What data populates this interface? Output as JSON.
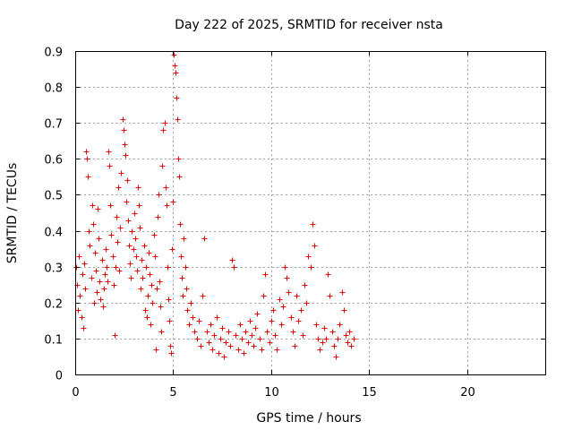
{
  "chart_data": {
    "type": "scatter",
    "title": "Day 222 of 2025, SRMTID for receiver nsta",
    "xlabel": "GPS time / hours",
    "ylabel": "SRMTID / TECUs",
    "xlim": [
      0,
      24
    ],
    "ylim": [
      0,
      0.9
    ],
    "xticks": [
      0,
      5,
      10,
      15,
      20
    ],
    "yticks": [
      0,
      0.1,
      0.2,
      0.3,
      0.4,
      0.5,
      0.6,
      0.7,
      0.8,
      0.9
    ],
    "grid": true,
    "marker": "+",
    "color": "#e60000",
    "series": [
      {
        "name": "nsta",
        "points": [
          [
            0.05,
            0.3
          ],
          [
            0.1,
            0.25
          ],
          [
            0.15,
            0.18
          ],
          [
            0.2,
            0.33
          ],
          [
            0.25,
            0.22
          ],
          [
            0.3,
            0.16
          ],
          [
            0.35,
            0.28
          ],
          [
            0.4,
            0.13
          ],
          [
            0.45,
            0.31
          ],
          [
            0.5,
            0.24
          ],
          [
            0.55,
            0.62
          ],
          [
            0.6,
            0.6
          ],
          [
            0.65,
            0.55
          ],
          [
            0.7,
            0.4
          ],
          [
            0.75,
            0.36
          ],
          [
            0.8,
            0.27
          ],
          [
            0.85,
            0.47
          ],
          [
            0.9,
            0.42
          ],
          [
            0.95,
            0.2
          ],
          [
            1.0,
            0.34
          ],
          [
            1.05,
            0.29
          ],
          [
            1.1,
            0.23
          ],
          [
            1.15,
            0.46
          ],
          [
            1.2,
            0.38
          ],
          [
            1.25,
            0.26
          ],
          [
            1.3,
            0.21
          ],
          [
            1.35,
            0.32
          ],
          [
            1.4,
            0.19
          ],
          [
            1.45,
            0.24
          ],
          [
            1.5,
            0.28
          ],
          [
            1.55,
            0.35
          ],
          [
            1.6,
            0.3
          ],
          [
            1.65,
            0.26
          ],
          [
            1.7,
            0.62
          ],
          [
            1.75,
            0.58
          ],
          [
            1.8,
            0.47
          ],
          [
            1.85,
            0.39
          ],
          [
            1.9,
            0.33
          ],
          [
            1.95,
            0.25
          ],
          [
            2.0,
            0.11
          ],
          [
            2.05,
            0.3
          ],
          [
            2.1,
            0.44
          ],
          [
            2.15,
            0.37
          ],
          [
            2.2,
            0.52
          ],
          [
            2.25,
            0.29
          ],
          [
            2.3,
            0.41
          ],
          [
            2.35,
            0.56
          ],
          [
            2.4,
            0.71
          ],
          [
            2.45,
            0.68
          ],
          [
            2.5,
            0.64
          ],
          [
            2.55,
            0.61
          ],
          [
            2.6,
            0.48
          ],
          [
            2.65,
            0.54
          ],
          [
            2.7,
            0.43
          ],
          [
            2.75,
            0.36
          ],
          [
            2.8,
            0.31
          ],
          [
            2.85,
            0.27
          ],
          [
            2.9,
            0.4
          ],
          [
            2.95,
            0.35
          ],
          [
            3.0,
            0.45
          ],
          [
            3.05,
            0.38
          ],
          [
            3.1,
            0.33
          ],
          [
            3.15,
            0.29
          ],
          [
            3.2,
            0.52
          ],
          [
            3.25,
            0.47
          ],
          [
            3.3,
            0.41
          ],
          [
            3.35,
            0.24
          ],
          [
            3.4,
            0.32
          ],
          [
            3.45,
            0.27
          ],
          [
            3.5,
            0.36
          ],
          [
            3.55,
            0.18
          ],
          [
            3.6,
            0.3
          ],
          [
            3.65,
            0.16
          ],
          [
            3.7,
            0.22
          ],
          [
            3.75,
            0.34
          ],
          [
            3.8,
            0.28
          ],
          [
            3.85,
            0.14
          ],
          [
            3.9,
            0.25
          ],
          [
            3.95,
            0.2
          ],
          [
            4.0,
            0.39
          ],
          [
            4.05,
            0.33
          ],
          [
            4.1,
            0.07
          ],
          [
            4.15,
            0.24
          ],
          [
            4.2,
            0.44
          ],
          [
            4.25,
            0.5
          ],
          [
            4.3,
            0.26
          ],
          [
            4.35,
            0.19
          ],
          [
            4.4,
            0.12
          ],
          [
            4.45,
            0.58
          ],
          [
            4.5,
            0.68
          ],
          [
            4.55,
            0.7
          ],
          [
            4.6,
            0.52
          ],
          [
            4.65,
            0.47
          ],
          [
            4.7,
            0.3
          ],
          [
            4.75,
            0.21
          ],
          [
            4.8,
            0.15
          ],
          [
            4.85,
            0.08
          ],
          [
            4.9,
            0.06
          ],
          [
            4.95,
            0.35
          ],
          [
            5.0,
            0.48
          ],
          [
            5.05,
            0.89
          ],
          [
            5.08,
            0.86
          ],
          [
            5.1,
            0.84
          ],
          [
            5.15,
            0.77
          ],
          [
            5.2,
            0.71
          ],
          [
            5.25,
            0.6
          ],
          [
            5.3,
            0.55
          ],
          [
            5.35,
            0.42
          ],
          [
            5.4,
            0.33
          ],
          [
            5.45,
            0.27
          ],
          [
            5.5,
            0.22
          ],
          [
            5.55,
            0.38
          ],
          [
            5.6,
            0.3
          ],
          [
            5.65,
            0.24
          ],
          [
            5.7,
            0.18
          ],
          [
            5.8,
            0.14
          ],
          [
            5.9,
            0.2
          ],
          [
            6.0,
            0.16
          ],
          [
            6.1,
            0.12
          ],
          [
            6.2,
            0.1
          ],
          [
            6.3,
            0.15
          ],
          [
            6.4,
            0.08
          ],
          [
            6.5,
            0.22
          ],
          [
            6.6,
            0.38
          ],
          [
            6.7,
            0.12
          ],
          [
            6.8,
            0.09
          ],
          [
            6.9,
            0.14
          ],
          [
            7.0,
            0.07
          ],
          [
            7.1,
            0.11
          ],
          [
            7.2,
            0.16
          ],
          [
            7.3,
            0.06
          ],
          [
            7.4,
            0.1
          ],
          [
            7.5,
            0.13
          ],
          [
            7.6,
            0.05
          ],
          [
            7.7,
            0.09
          ],
          [
            7.8,
            0.12
          ],
          [
            7.9,
            0.08
          ],
          [
            8.0,
            0.32
          ],
          [
            8.1,
            0.3
          ],
          [
            8.2,
            0.11
          ],
          [
            8.3,
            0.07
          ],
          [
            8.4,
            0.14
          ],
          [
            8.5,
            0.1
          ],
          [
            8.6,
            0.06
          ],
          [
            8.7,
            0.12
          ],
          [
            8.8,
            0.09
          ],
          [
            8.9,
            0.15
          ],
          [
            9.0,
            0.11
          ],
          [
            9.1,
            0.08
          ],
          [
            9.2,
            0.13
          ],
          [
            9.3,
            0.17
          ],
          [
            9.4,
            0.1
          ],
          [
            9.5,
            0.07
          ],
          [
            9.6,
            0.22
          ],
          [
            9.7,
            0.28
          ],
          [
            9.8,
            0.12
          ],
          [
            9.9,
            0.09
          ],
          [
            10.0,
            0.15
          ],
          [
            10.1,
            0.18
          ],
          [
            10.2,
            0.11
          ],
          [
            10.3,
            0.07
          ],
          [
            10.4,
            0.21
          ],
          [
            10.5,
            0.14
          ],
          [
            10.6,
            0.19
          ],
          [
            10.7,
            0.3
          ],
          [
            10.8,
            0.27
          ],
          [
            10.9,
            0.23
          ],
          [
            11.0,
            0.16
          ],
          [
            11.1,
            0.12
          ],
          [
            11.2,
            0.08
          ],
          [
            11.3,
            0.22
          ],
          [
            11.4,
            0.15
          ],
          [
            11.5,
            0.18
          ],
          [
            11.6,
            0.11
          ],
          [
            11.7,
            0.25
          ],
          [
            11.8,
            0.2
          ],
          [
            11.9,
            0.33
          ],
          [
            12.0,
            0.3
          ],
          [
            12.1,
            0.42
          ],
          [
            12.2,
            0.36
          ],
          [
            12.3,
            0.14
          ],
          [
            12.4,
            0.1
          ],
          [
            12.5,
            0.07
          ],
          [
            12.6,
            0.09
          ],
          [
            12.7,
            0.13
          ],
          [
            12.8,
            0.1
          ],
          [
            12.9,
            0.28
          ],
          [
            13.0,
            0.22
          ],
          [
            13.1,
            0.12
          ],
          [
            13.2,
            0.08
          ],
          [
            13.3,
            0.05
          ],
          [
            13.4,
            0.1
          ],
          [
            13.5,
            0.14
          ],
          [
            13.6,
            0.23
          ],
          [
            13.7,
            0.18
          ],
          [
            13.8,
            0.11
          ],
          [
            13.9,
            0.09
          ],
          [
            14.0,
            0.12
          ],
          [
            14.1,
            0.08
          ],
          [
            14.2,
            0.1
          ]
        ]
      }
    ]
  }
}
